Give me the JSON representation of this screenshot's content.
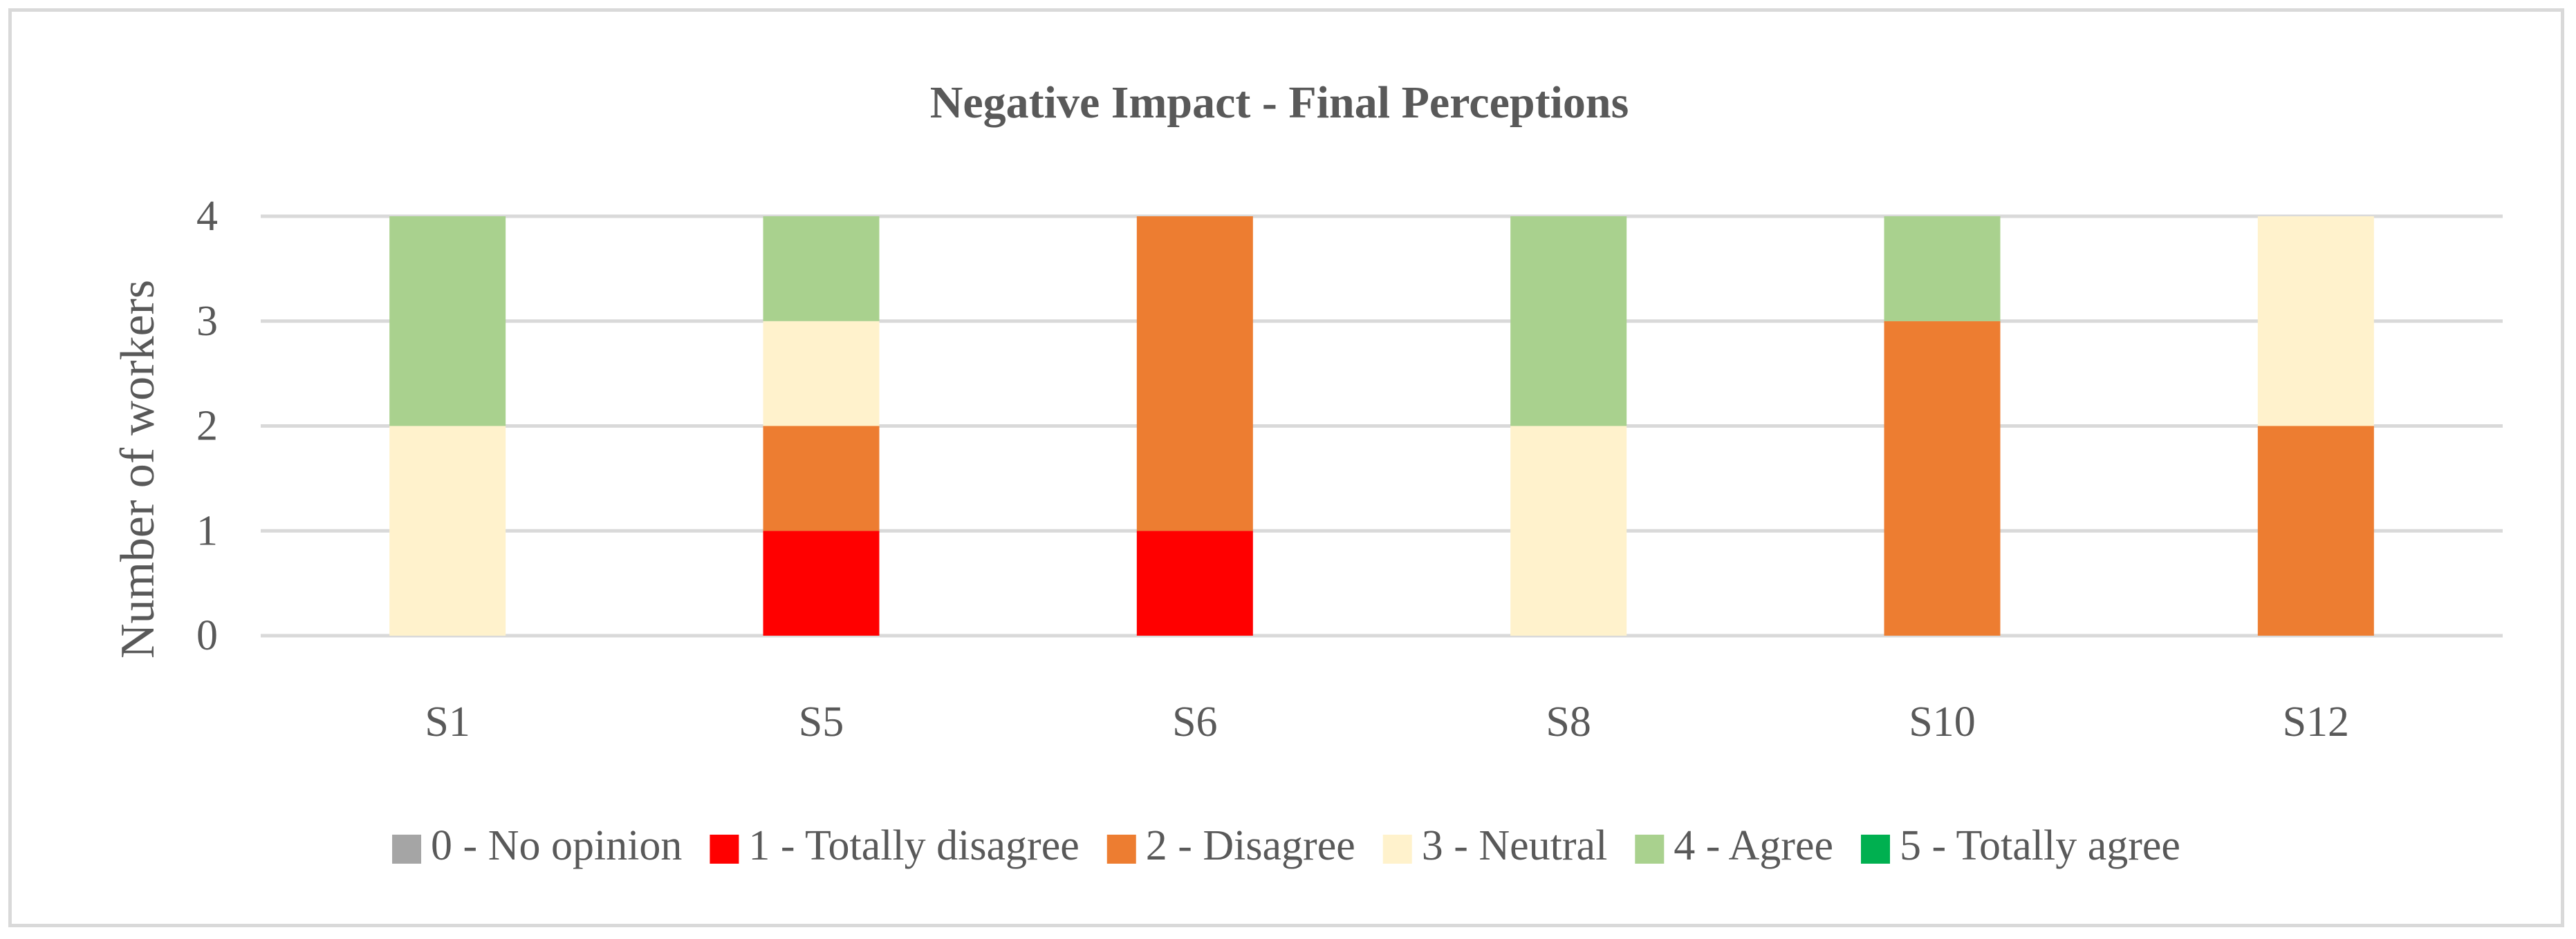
{
  "chart_data": {
    "type": "bar",
    "stacked": true,
    "title": "Negative Impact - Final Perceptions",
    "xlabel": "",
    "ylabel": "Number of workers",
    "ylim": [
      0,
      4
    ],
    "yticks": [
      "0",
      "1",
      "2",
      "3",
      "4"
    ],
    "grid": true,
    "legend_position": "bottom",
    "categories": [
      "S1",
      "S5",
      "S6",
      "S8",
      "S10",
      "S12"
    ],
    "series": [
      {
        "name": "0 - No opinion",
        "color": "#a5a5a5",
        "values": [
          0,
          0,
          0,
          0,
          0,
          0
        ]
      },
      {
        "name": "1 - Totally disagree",
        "color": "#ff0000",
        "values": [
          0,
          1,
          1,
          0,
          0,
          0
        ]
      },
      {
        "name": "2 - Disagree",
        "color": "#ed7d31",
        "values": [
          0,
          1,
          3,
          0,
          3,
          2
        ]
      },
      {
        "name": "3 - Neutral",
        "color": "#fff2cc",
        "values": [
          2,
          1,
          0,
          2,
          0,
          2
        ]
      },
      {
        "name": "4 - Agree",
        "color": "#a9d18e",
        "values": [
          2,
          1,
          0,
          2,
          1,
          0
        ]
      },
      {
        "name": "5 - Totally agree",
        "color": "#00b050",
        "values": [
          0,
          0,
          0,
          0,
          0,
          0
        ]
      }
    ]
  }
}
